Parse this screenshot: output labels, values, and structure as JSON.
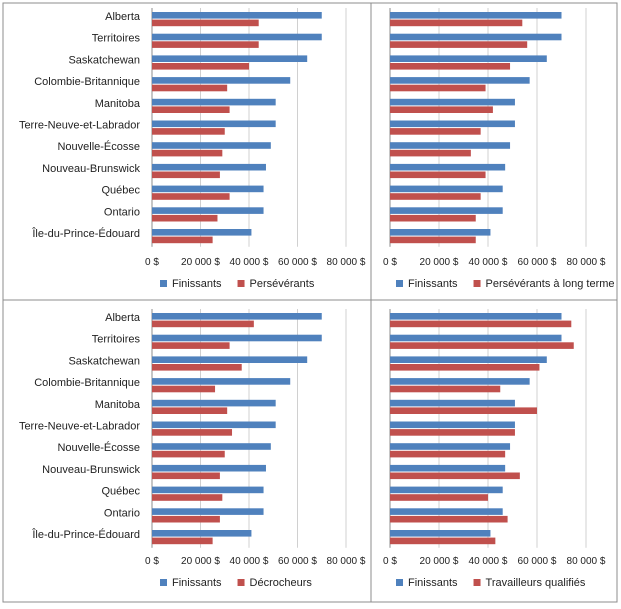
{
  "colors": {
    "finissants": "#4F81BD",
    "comparison": "#C0504D",
    "border": "#8c8c8c",
    "gridline": "#d0d0d0",
    "axis": "#8c8c8c"
  },
  "chart_data": [
    {
      "type": "bar",
      "position": "top-left",
      "categories": [
        "Alberta",
        "Territoires",
        "Saskatchewan",
        "Colombie-Britannique",
        "Manitoba",
        "Terre-Neuve-et-Labrador",
        "Nouvelle-Écosse",
        "Nouveau-Brunswick",
        "Québec",
        "Ontario",
        "Île-du-Prince-Édouard"
      ],
      "xlim": [
        0,
        80000
      ],
      "xticks": [
        "0 $",
        "20 000 $",
        "40 000 $",
        "60 000 $",
        "80 000 $"
      ],
      "series": [
        {
          "name": "Finissants",
          "values": [
            70000,
            70000,
            64000,
            57000,
            51000,
            51000,
            49000,
            47000,
            46000,
            46000,
            41000
          ]
        },
        {
          "name": "Persévérants",
          "values": [
            44000,
            44000,
            40000,
            31000,
            32000,
            30000,
            29000,
            28000,
            32000,
            27000,
            25000
          ]
        }
      ]
    },
    {
      "type": "bar",
      "position": "top-right",
      "categories": [
        "Alberta",
        "Territoires",
        "Saskatchewan",
        "Colombie-Britannique",
        "Manitoba",
        "Terre-Neuve-et-Labrador",
        "Nouvelle-Écosse",
        "Nouveau-Brunswick",
        "Québec",
        "Ontario",
        "Île-du-Prince-Édouard"
      ],
      "xlim": [
        0,
        80000
      ],
      "xticks": [
        "0 $",
        "20 000 $",
        "40 000 $",
        "60 000 $",
        "80 000 $"
      ],
      "series": [
        {
          "name": "Finissants",
          "values": [
            70000,
            70000,
            64000,
            57000,
            51000,
            51000,
            49000,
            47000,
            46000,
            46000,
            41000
          ]
        },
        {
          "name": "Persévérants à long terme",
          "values": [
            54000,
            56000,
            49000,
            39000,
            42000,
            37000,
            33000,
            39000,
            37000,
            35000,
            35000
          ]
        }
      ]
    },
    {
      "type": "bar",
      "position": "bottom-left",
      "categories": [
        "Alberta",
        "Territoires",
        "Saskatchewan",
        "Colombie-Britannique",
        "Manitoba",
        "Terre-Neuve-et-Labrador",
        "Nouvelle-Écosse",
        "Nouveau-Brunswick",
        "Québec",
        "Ontario",
        "Île-du-Prince-Édouard"
      ],
      "xlim": [
        0,
        80000
      ],
      "xticks": [
        "0 $",
        "20 000 $",
        "40 000 $",
        "60 000 $",
        "80 000 $"
      ],
      "series": [
        {
          "name": "Finissants",
          "values": [
            70000,
            70000,
            64000,
            57000,
            51000,
            51000,
            49000,
            47000,
            46000,
            46000,
            41000
          ]
        },
        {
          "name": "Décrocheurs",
          "values": [
            42000,
            32000,
            37000,
            26000,
            31000,
            33000,
            30000,
            28000,
            29000,
            28000,
            25000
          ]
        }
      ]
    },
    {
      "type": "bar",
      "position": "bottom-right",
      "categories": [
        "Alberta",
        "Territoires",
        "Saskatchewan",
        "Colombie-Britannique",
        "Manitoba",
        "Terre-Neuve-et-Labrador",
        "Nouvelle-Écosse",
        "Nouveau-Brunswick",
        "Québec",
        "Ontario",
        "Île-du-Prince-Édouard"
      ],
      "xlim": [
        0,
        80000
      ],
      "xticks": [
        "0 $",
        "20 000 $",
        "40 000 $",
        "60 000 $",
        "80 000 $"
      ],
      "series": [
        {
          "name": "Finissants",
          "values": [
            70000,
            70000,
            64000,
            57000,
            51000,
            51000,
            49000,
            47000,
            46000,
            46000,
            41000
          ]
        },
        {
          "name": "Travailleurs qualifiés",
          "values": [
            74000,
            75000,
            61000,
            45000,
            60000,
            51000,
            47000,
            53000,
            40000,
            48000,
            43000
          ]
        }
      ]
    }
  ]
}
